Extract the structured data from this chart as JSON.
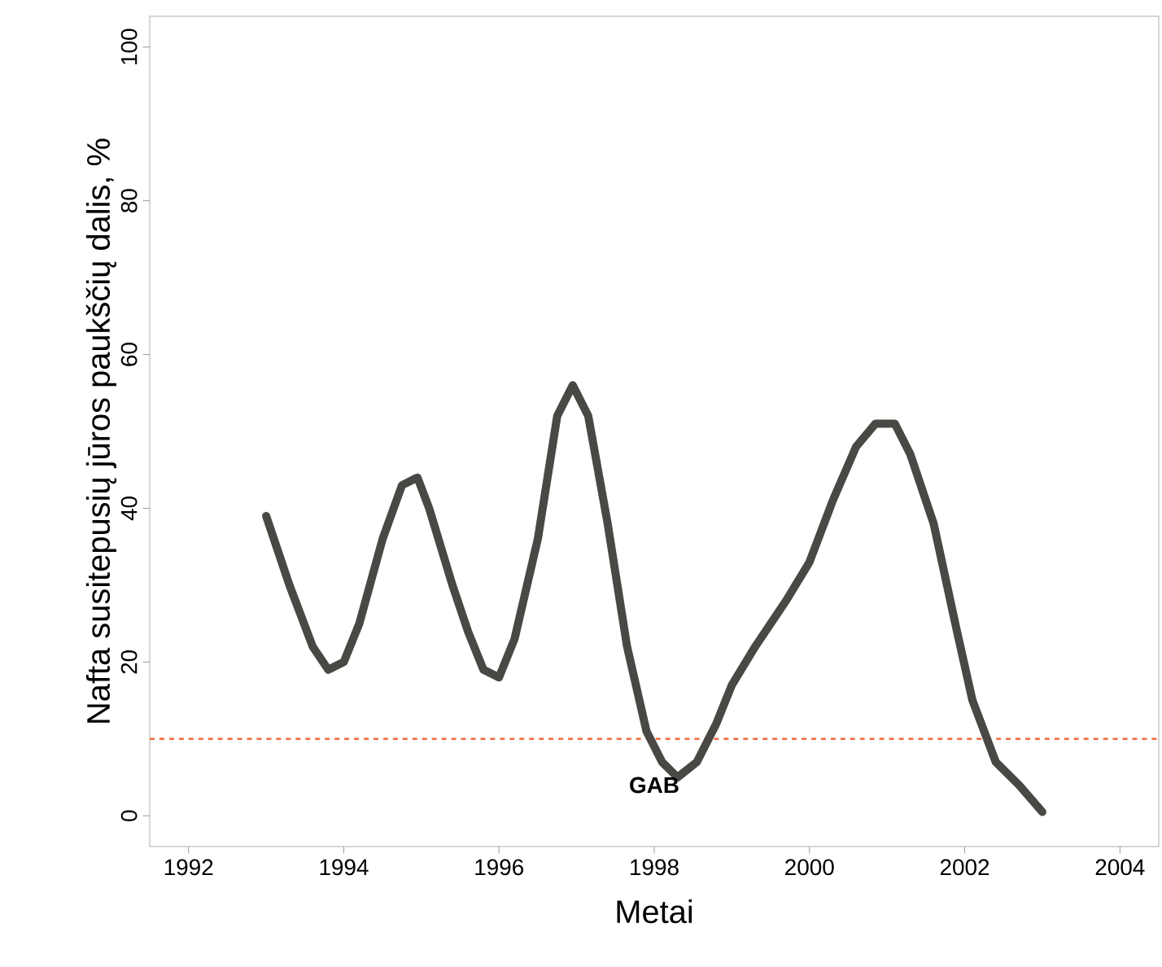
{
  "chart_data": {
    "type": "line",
    "xlabel": "Metai",
    "ylabel": "Nafta susitepusių jūros paukščių dalis, %",
    "series": [
      {
        "color": "#4a4845",
        "x": [
          1993.0,
          1993.3,
          1993.6,
          1993.8,
          1994.0,
          1994.2,
          1994.5,
          1994.75,
          1994.95,
          1995.1,
          1995.4,
          1995.6,
          1995.8,
          1996.0,
          1996.2,
          1996.5,
          1996.75,
          1996.95,
          1997.15,
          1997.4,
          1997.65,
          1997.9,
          1998.1,
          1998.3,
          1998.55,
          1998.8,
          1999.0,
          1999.3,
          1999.7,
          2000.0,
          2000.3,
          2000.6,
          2000.85,
          2001.1,
          2001.3,
          2001.6,
          2001.9,
          2002.1,
          2002.4,
          2002.7,
          2003.0
        ],
        "values": [
          39,
          30,
          22,
          19,
          20,
          25,
          36,
          43,
          44,
          40,
          30,
          24,
          19,
          18,
          23,
          36,
          52,
          56,
          52,
          38,
          22,
          11,
          7,
          5,
          7,
          12,
          17,
          22,
          28,
          33,
          41,
          48,
          51,
          51,
          47,
          38,
          24,
          15,
          7,
          4,
          0.5
        ]
      }
    ],
    "xlim": [
      1991.5,
      2004.5
    ],
    "ylim": [
      -4,
      104
    ],
    "xticks": [
      1992,
      1994,
      1996,
      1998,
      2000,
      2002,
      2004
    ],
    "yticks": [
      0,
      20,
      40,
      60,
      80,
      100
    ],
    "ref_lines": [
      {
        "axis": "y",
        "value": 10,
        "color": "#f26a3d",
        "line_style": "dashed"
      }
    ],
    "annotations": [
      "GAB"
    ],
    "grid": false
  }
}
